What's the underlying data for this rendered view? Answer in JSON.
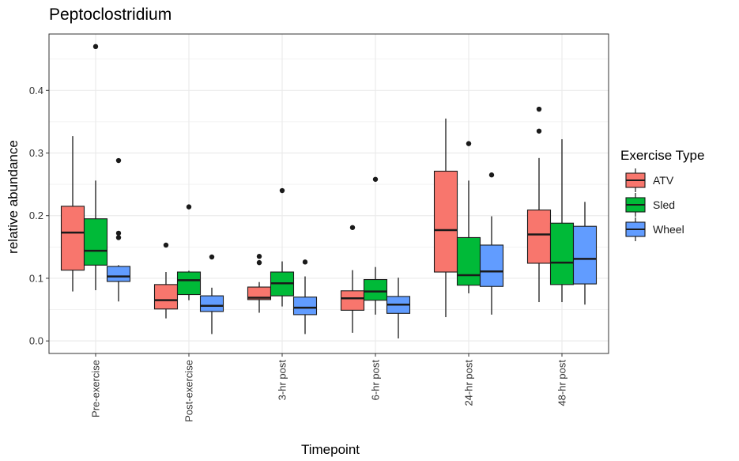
{
  "chart_data": {
    "type": "boxplot",
    "title": "Peptoclostridium",
    "xlabel": "Timepoint",
    "ylabel": "relative abundance",
    "ylim": [
      -0.02,
      0.49
    ],
    "yticks": [
      0.0,
      0.1,
      0.2,
      0.3,
      0.4
    ],
    "ytick_labels": [
      "0.0",
      "0.1",
      "0.2",
      "0.3",
      "0.4"
    ],
    "grid": true,
    "categories": [
      "Pre-exercise",
      "Post-exercise",
      "3-hr post",
      "6-hr post",
      "24-hr post",
      "48-hr post"
    ],
    "legend": {
      "title": "Exercise Type",
      "position": "right"
    },
    "series": [
      {
        "name": "ATV",
        "color": "#F8766D",
        "boxes": [
          {
            "low": 0.079,
            "q1": 0.113,
            "median": 0.173,
            "q3": 0.215,
            "high": 0.327,
            "outliers": []
          },
          {
            "low": 0.036,
            "q1": 0.051,
            "median": 0.065,
            "q3": 0.09,
            "high": 0.11,
            "outliers": [
              0.153
            ]
          },
          {
            "low": 0.045,
            "q1": 0.066,
            "median": 0.069,
            "q3": 0.086,
            "high": 0.094,
            "outliers": [
              0.125,
              0.135
            ]
          },
          {
            "low": 0.013,
            "q1": 0.049,
            "median": 0.068,
            "q3": 0.08,
            "high": 0.113,
            "outliers": [
              0.181
            ]
          },
          {
            "low": 0.038,
            "q1": 0.11,
            "median": 0.177,
            "q3": 0.271,
            "high": 0.355,
            "outliers": []
          },
          {
            "low": 0.062,
            "q1": 0.124,
            "median": 0.17,
            "q3": 0.209,
            "high": 0.292,
            "outliers": [
              0.335,
              0.37
            ]
          }
        ]
      },
      {
        "name": "Sled",
        "color": "#00BA38",
        "boxes": [
          {
            "low": 0.081,
            "q1": 0.121,
            "median": 0.144,
            "q3": 0.195,
            "high": 0.256,
            "outliers": [
              0.47
            ]
          },
          {
            "low": 0.065,
            "q1": 0.074,
            "median": 0.097,
            "q3": 0.11,
            "high": 0.112,
            "outliers": [
              0.214
            ]
          },
          {
            "low": 0.055,
            "q1": 0.072,
            "median": 0.092,
            "q3": 0.11,
            "high": 0.127,
            "outliers": [
              0.24
            ]
          },
          {
            "low": 0.042,
            "q1": 0.065,
            "median": 0.079,
            "q3": 0.098,
            "high": 0.118,
            "outliers": [
              0.258
            ]
          },
          {
            "low": 0.076,
            "q1": 0.089,
            "median": 0.105,
            "q3": 0.165,
            "high": 0.256,
            "outliers": [
              0.315
            ]
          },
          {
            "low": 0.062,
            "q1": 0.09,
            "median": 0.125,
            "q3": 0.188,
            "high": 0.322,
            "outliers": []
          }
        ]
      },
      {
        "name": "Wheel",
        "color": "#619CFF",
        "boxes": [
          {
            "low": 0.063,
            "q1": 0.095,
            "median": 0.103,
            "q3": 0.119,
            "high": 0.121,
            "outliers": [
              0.165,
              0.172,
              0.288
            ]
          },
          {
            "low": 0.011,
            "q1": 0.047,
            "median": 0.056,
            "q3": 0.072,
            "high": 0.085,
            "outliers": [
              0.134
            ]
          },
          {
            "low": 0.011,
            "q1": 0.042,
            "median": 0.053,
            "q3": 0.07,
            "high": 0.103,
            "outliers": [
              0.126
            ]
          },
          {
            "low": 0.004,
            "q1": 0.044,
            "median": 0.058,
            "q3": 0.071,
            "high": 0.101,
            "outliers": []
          },
          {
            "low": 0.042,
            "q1": 0.087,
            "median": 0.111,
            "q3": 0.153,
            "high": 0.199,
            "outliers": [
              0.265
            ]
          },
          {
            "low": 0.058,
            "q1": 0.091,
            "median": 0.131,
            "q3": 0.183,
            "high": 0.222,
            "outliers": []
          }
        ]
      }
    ]
  }
}
